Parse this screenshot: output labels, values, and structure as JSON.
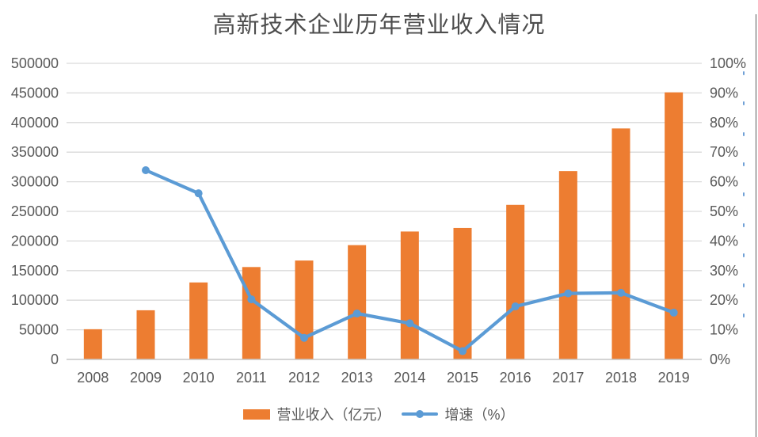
{
  "title": "高新技术企业历年营业收入情况",
  "chart_data": {
    "type": "bar+line",
    "title": "高新技术企业历年营业收入情况",
    "categories": [
      "2008",
      "2009",
      "2010",
      "2011",
      "2012",
      "2013",
      "2014",
      "2015",
      "2016",
      "2017",
      "2018",
      "2019"
    ],
    "series": [
      {
        "name": "营业收入（亿元）",
        "type": "bar",
        "axis": "left",
        "color": "#ED7D31",
        "values": [
          51000,
          83000,
          130000,
          156000,
          167000,
          193000,
          216000,
          222000,
          261000,
          318000,
          390000,
          451000
        ]
      },
      {
        "name": "增速（%）",
        "type": "line",
        "axis": "right",
        "color": "#5B9BD5",
        "values": [
          null,
          63.9,
          56.1,
          20.3,
          7.3,
          15.5,
          12.2,
          2.8,
          17.9,
          22.3,
          22.5,
          15.8
        ]
      }
    ],
    "y_left": {
      "min": 0,
      "max": 500000,
      "step": 50000,
      "ticks": [
        "0",
        "50000",
        "100000",
        "150000",
        "200000",
        "250000",
        "300000",
        "350000",
        "400000",
        "450000",
        "500000"
      ]
    },
    "y_right": {
      "min": 0,
      "max": 100,
      "step": 10,
      "ticks": [
        "0%",
        "10%",
        "20%",
        "30%",
        "40%",
        "50%",
        "60%",
        "70%",
        "80%",
        "90%",
        "100%"
      ]
    },
    "grid": true,
    "legend_position": "bottom"
  },
  "colors": {
    "bar": "#ED7D31",
    "line": "#5B9BD5",
    "gridline": "#D9D9D9",
    "axis_line": "#C6C6C6",
    "axis_text": "#595959",
    "title_text": "#4D4D4D",
    "edge_line": "#5A5A5A",
    "edge_marks": "#6FA0D6"
  }
}
